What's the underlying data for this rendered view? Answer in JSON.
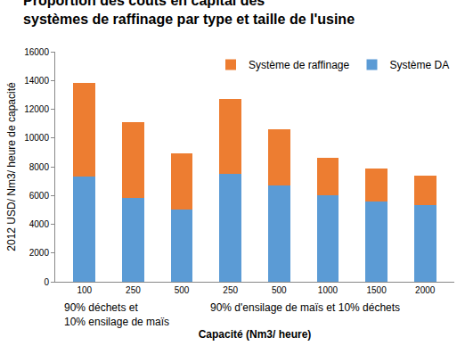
{
  "chart_data": {
    "type": "bar",
    "title": "Proportion des coûts en capital des\nsystèmes de raffinage par type et taille de l'usine",
    "x_label": "Capacité (Nm3/ heure)",
    "y_label": "2012 USD/ Nm3/ heure de capacité",
    "annotations": [
      "90% déchets et\n10% ensilage de maïs",
      "90% d'ensilage de maïs et 10% déchets"
    ],
    "categories": [
      "100",
      "250",
      "500",
      "250",
      "500",
      "1000",
      "1500",
      "2000"
    ],
    "series": [
      {
        "name": "Système DA",
        "color": "#5B9BD5",
        "values": [
          7300,
          5850,
          5000,
          7500,
          6700,
          6000,
          5600,
          5350
        ]
      },
      {
        "name": "Système de raffinage",
        "color": "#ED7D31",
        "values": [
          6500,
          5250,
          3950,
          5200,
          3900,
          2600,
          2300,
          2000
        ]
      }
    ],
    "ylim": [
      0,
      16000
    ],
    "yticks": [
      0,
      2000,
      4000,
      6000,
      8000,
      10000,
      12000,
      14000,
      16000
    ],
    "stacked": true,
    "grid": false,
    "legend": "top right"
  }
}
